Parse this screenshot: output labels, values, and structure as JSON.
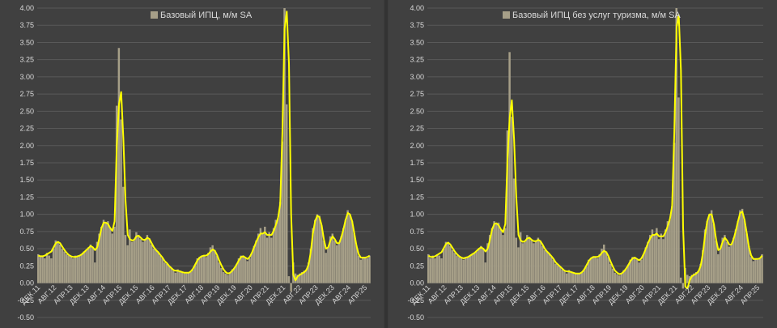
{
  "colors": {
    "bar": "#a69f88",
    "line": "#ffff00",
    "grid": "#595959",
    "text": "#d9d9d9",
    "background": "#404040"
  },
  "chart_data": [
    {
      "type": "bar",
      "legend": "Базовый ИПЦ, м/м SA",
      "legend_position": "top-center",
      "grid": true,
      "ylim": [
        -0.5,
        4.0
      ],
      "y_ticks": [
        "-0.50",
        "-0.25",
        "0.00",
        "0.25",
        "0.50",
        "0.75",
        "1.00",
        "1.25",
        "1.50",
        "1.75",
        "2.00",
        "2.25",
        "2.50",
        "2.75",
        "3.00",
        "3.25",
        "3.50",
        "3.75",
        "4.00"
      ],
      "x_ticks": [
        "ДЕК.11",
        "АВГ.12",
        "АПР.13",
        "ДЕК.13",
        "АВГ.14",
        "АПР.15",
        "ДЕК.15",
        "АВГ.16",
        "АПР.17",
        "ДЕК.17",
        "АВГ.18",
        "АПР.19",
        "ДЕК.19",
        "АВГ.20",
        "АПР.21",
        "ДЕК.21",
        "АВГ.22",
        "АПР.23",
        "ДЕК.23",
        "АВГ.24",
        "АПР.25"
      ],
      "x_period": "monthly, Dec 2011 – Aug 2025",
      "series": [
        {
          "values": [
            0.42,
            0.38,
            0.4,
            0.36,
            0.44,
            0.4,
            0.36,
            0.5,
            0.62,
            0.6,
            0.56,
            0.5,
            0.46,
            0.42,
            0.4,
            0.38,
            0.36,
            0.4,
            0.38,
            0.4,
            0.42,
            0.46,
            0.48,
            0.52,
            0.56,
            0.52,
            0.3,
            0.6,
            0.72,
            0.82,
            0.92,
            0.88,
            0.9,
            0.8,
            0.72,
            0.82,
            2.58,
            3.42,
            2.38,
            1.4,
            0.7,
            0.55,
            0.78,
            0.6,
            0.62,
            0.74,
            0.7,
            0.64,
            0.6,
            0.64,
            0.7,
            0.65,
            0.56,
            0.5,
            0.48,
            0.45,
            0.4,
            0.36,
            0.3,
            0.28,
            0.25,
            0.22,
            0.18,
            0.15,
            0.2,
            0.18,
            0.16,
            0.14,
            0.14,
            0.15,
            0.16,
            0.2,
            0.26,
            0.36,
            0.38,
            0.4,
            0.4,
            0.38,
            0.44,
            0.52,
            0.55,
            0.48,
            0.4,
            0.3,
            0.22,
            0.16,
            0.14,
            0.12,
            0.15,
            0.2,
            0.22,
            0.28,
            0.36,
            0.4,
            0.4,
            0.36,
            0.32,
            0.36,
            0.44,
            0.54,
            0.62,
            0.72,
            0.8,
            0.72,
            0.82,
            0.66,
            0.74,
            0.66,
            0.8,
            0.92,
            0.94,
            1.18,
            2.06,
            4.0,
            2.6,
            0.1,
            -0.12,
            0.3,
            0.14,
            0.12,
            0.14,
            0.16,
            0.18,
            0.2,
            0.3,
            0.5,
            0.8,
            0.92,
            1.0,
            0.98,
            0.84,
            0.62,
            0.44,
            0.52,
            0.68,
            0.72,
            0.62,
            0.55,
            0.58,
            0.68,
            0.8,
            0.92,
            1.06,
            1.0,
            0.9,
            0.72,
            0.55,
            0.4,
            0.34,
            0.38,
            0.36,
            0.36,
            0.4
          ],
          "trend": [
            0.4,
            0.39,
            0.39,
            0.4,
            0.42,
            0.44,
            0.46,
            0.52,
            0.58,
            0.6,
            0.58,
            0.53,
            0.48,
            0.44,
            0.41,
            0.39,
            0.38,
            0.38,
            0.39,
            0.4,
            0.42,
            0.45,
            0.48,
            0.51,
            0.54,
            0.52,
            0.48,
            0.52,
            0.65,
            0.8,
            0.88,
            0.88,
            0.86,
            0.8,
            0.76,
            0.9,
            2.0,
            2.6,
            2.78,
            2.1,
            1.2,
            0.7,
            0.64,
            0.62,
            0.63,
            0.68,
            0.69,
            0.66,
            0.63,
            0.63,
            0.66,
            0.64,
            0.58,
            0.52,
            0.48,
            0.45,
            0.41,
            0.37,
            0.32,
            0.29,
            0.25,
            0.22,
            0.19,
            0.18,
            0.18,
            0.17,
            0.16,
            0.15,
            0.15,
            0.15,
            0.17,
            0.21,
            0.27,
            0.33,
            0.37,
            0.39,
            0.4,
            0.4,
            0.42,
            0.46,
            0.49,
            0.47,
            0.41,
            0.33,
            0.26,
            0.2,
            0.16,
            0.14,
            0.15,
            0.18,
            0.22,
            0.27,
            0.33,
            0.38,
            0.39,
            0.37,
            0.35,
            0.38,
            0.44,
            0.52,
            0.6,
            0.67,
            0.72,
            0.72,
            0.74,
            0.7,
            0.7,
            0.7,
            0.76,
            0.85,
            0.95,
            1.15,
            2.2,
            3.7,
            3.95,
            3.2,
            1.0,
            0.12,
            0.04,
            0.1,
            0.12,
            0.14,
            0.16,
            0.19,
            0.27,
            0.45,
            0.72,
            0.9,
            0.98,
            0.96,
            0.84,
            0.64,
            0.5,
            0.52,
            0.62,
            0.68,
            0.64,
            0.58,
            0.58,
            0.66,
            0.78,
            0.92,
            1.02,
            1.0,
            0.9,
            0.72,
            0.54,
            0.42,
            0.37,
            0.37,
            0.37,
            0.38,
            0.4
          ]
        }
      ]
    },
    {
      "type": "bar",
      "legend": "Базовый ИПЦ без услуг туризма, м/м SA",
      "legend_position": "top-center",
      "grid": true,
      "ylim": [
        -0.5,
        4.0
      ],
      "y_ticks": [
        "-0.50",
        "-0.25",
        "0.00",
        "0.25",
        "0.50",
        "0.75",
        "1.00",
        "1.25",
        "1.50",
        "1.75",
        "2.00",
        "2.25",
        "2.50",
        "2.75",
        "3.00",
        "3.25",
        "3.50",
        "3.75",
        "4.00"
      ],
      "x_ticks": [
        "ДЕК.11",
        "АВГ.12",
        "АПР.13",
        "ДЕК.13",
        "АВГ.14",
        "АПР.15",
        "ДЕК.15",
        "АВГ.16",
        "АПР.17",
        "ДЕК.17",
        "АВГ.18",
        "АПР.19",
        "ДЕК.19",
        "АВГ.20",
        "АПР.21",
        "ДЕК.21",
        "АВГ.22",
        "АПР.23",
        "ДЕК.23",
        "АВГ.24",
        "АПР.25"
      ],
      "x_period": "monthly, Dec 2011 – Aug 2025",
      "series": [
        {
          "values": [
            0.42,
            0.36,
            0.4,
            0.36,
            0.42,
            0.4,
            0.36,
            0.5,
            0.6,
            0.58,
            0.54,
            0.48,
            0.44,
            0.4,
            0.38,
            0.36,
            0.34,
            0.38,
            0.38,
            0.4,
            0.42,
            0.44,
            0.46,
            0.5,
            0.54,
            0.5,
            0.3,
            0.58,
            0.7,
            0.8,
            0.9,
            0.86,
            0.88,
            0.78,
            0.7,
            0.8,
            2.22,
            3.36,
            2.42,
            1.52,
            0.66,
            0.52,
            0.74,
            0.58,
            0.6,
            0.7,
            0.66,
            0.62,
            0.58,
            0.62,
            0.66,
            0.62,
            0.54,
            0.48,
            0.46,
            0.43,
            0.38,
            0.34,
            0.28,
            0.26,
            0.24,
            0.2,
            0.17,
            0.14,
            0.19,
            0.17,
            0.15,
            0.13,
            0.13,
            0.14,
            0.15,
            0.19,
            0.24,
            0.34,
            0.36,
            0.38,
            0.38,
            0.36,
            0.42,
            0.5,
            0.56,
            0.46,
            0.38,
            0.28,
            0.21,
            0.15,
            0.13,
            0.11,
            0.14,
            0.19,
            0.21,
            0.27,
            0.34,
            0.38,
            0.38,
            0.34,
            0.3,
            0.34,
            0.42,
            0.52,
            0.6,
            0.7,
            0.78,
            0.7,
            0.8,
            0.64,
            0.72,
            0.64,
            0.78,
            0.9,
            0.92,
            1.12,
            2.04,
            4.0,
            2.7,
            0.08,
            -0.08,
            0.22,
            0.12,
            0.1,
            0.12,
            0.14,
            0.16,
            0.18,
            0.28,
            0.48,
            0.78,
            0.9,
            1.0,
            1.06,
            0.86,
            0.62,
            0.42,
            0.5,
            0.66,
            0.7,
            0.6,
            0.53,
            0.56,
            0.66,
            0.78,
            0.9,
            1.06,
            1.08,
            0.92,
            0.72,
            0.54,
            0.38,
            0.32,
            0.36,
            0.34,
            0.35,
            0.42
          ],
          "trend": [
            0.4,
            0.38,
            0.38,
            0.39,
            0.41,
            0.43,
            0.45,
            0.51,
            0.57,
            0.59,
            0.56,
            0.51,
            0.46,
            0.42,
            0.39,
            0.37,
            0.36,
            0.37,
            0.38,
            0.4,
            0.42,
            0.44,
            0.47,
            0.5,
            0.52,
            0.5,
            0.46,
            0.5,
            0.63,
            0.78,
            0.86,
            0.87,
            0.84,
            0.78,
            0.74,
            0.86,
            1.8,
            2.4,
            2.66,
            2.1,
            1.25,
            0.7,
            0.62,
            0.6,
            0.61,
            0.65,
            0.66,
            0.63,
            0.61,
            0.61,
            0.63,
            0.61,
            0.56,
            0.5,
            0.46,
            0.43,
            0.39,
            0.35,
            0.3,
            0.27,
            0.24,
            0.21,
            0.18,
            0.17,
            0.17,
            0.16,
            0.15,
            0.14,
            0.14,
            0.14,
            0.16,
            0.2,
            0.26,
            0.32,
            0.36,
            0.38,
            0.38,
            0.38,
            0.4,
            0.44,
            0.47,
            0.45,
            0.39,
            0.31,
            0.24,
            0.18,
            0.15,
            0.13,
            0.14,
            0.17,
            0.21,
            0.26,
            0.32,
            0.36,
            0.37,
            0.35,
            0.33,
            0.36,
            0.42,
            0.5,
            0.58,
            0.65,
            0.7,
            0.7,
            0.72,
            0.68,
            0.68,
            0.68,
            0.74,
            0.83,
            0.93,
            1.12,
            2.18,
            3.72,
            3.9,
            3.1,
            0.8,
            -0.05,
            -0.08,
            0.04,
            0.1,
            0.12,
            0.14,
            0.17,
            0.25,
            0.43,
            0.7,
            0.9,
            1.0,
            1.0,
            0.86,
            0.64,
            0.48,
            0.5,
            0.6,
            0.66,
            0.62,
            0.56,
            0.56,
            0.64,
            0.76,
            0.9,
            1.02,
            1.04,
            0.92,
            0.72,
            0.52,
            0.4,
            0.35,
            0.35,
            0.35,
            0.36,
            0.4
          ]
        }
      ]
    }
  ]
}
